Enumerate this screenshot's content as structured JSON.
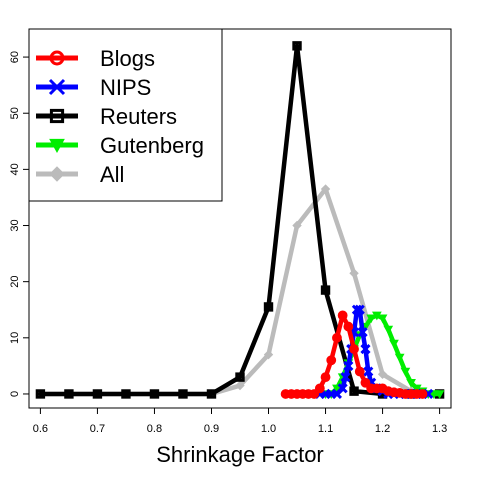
{
  "chart_data": {
    "type": "line",
    "title": "",
    "xlabel": "Shrinkage Factor",
    "ylabel": "",
    "xlim": [
      0.58,
      1.32
    ],
    "ylim": [
      -2.5,
      65
    ],
    "x_ticks": [
      "0.6",
      "0.7",
      "0.8",
      "0.9",
      "1.0",
      "1.1",
      "1.2",
      "1.3"
    ],
    "y_ticks": [
      "0",
      "10",
      "20",
      "30",
      "40",
      "50",
      "60"
    ],
    "legend_position": "top-left",
    "grid": false,
    "series": [
      {
        "name": "Blogs",
        "color": "#ff0000",
        "marker": "circle",
        "points": [
          [
            1.03,
            0
          ],
          [
            1.04,
            0
          ],
          [
            1.05,
            0
          ],
          [
            1.06,
            0
          ],
          [
            1.07,
            0
          ],
          [
            1.08,
            0
          ],
          [
            1.09,
            1
          ],
          [
            1.1,
            3
          ],
          [
            1.11,
            6
          ],
          [
            1.12,
            10
          ],
          [
            1.13,
            14
          ],
          [
            1.14,
            12
          ],
          [
            1.15,
            8
          ],
          [
            1.16,
            4
          ],
          [
            1.17,
            2
          ],
          [
            1.18,
            1
          ],
          [
            1.19,
            1
          ],
          [
            1.2,
            1
          ],
          [
            1.21,
            0.5
          ],
          [
            1.22,
            0.3
          ],
          [
            1.23,
            0.2
          ],
          [
            1.24,
            0
          ],
          [
            1.25,
            0
          ],
          [
            1.26,
            0
          ],
          [
            1.27,
            0
          ]
        ]
      },
      {
        "name": "NIPS",
        "color": "#0000ff",
        "marker": "x",
        "points": [
          [
            1.09,
            0
          ],
          [
            1.1,
            0
          ],
          [
            1.11,
            0
          ],
          [
            1.12,
            0
          ],
          [
            1.13,
            1
          ],
          [
            1.135,
            3
          ],
          [
            1.14,
            5
          ],
          [
            1.145,
            8
          ],
          [
            1.15,
            11
          ],
          [
            1.155,
            15
          ],
          [
            1.16,
            15
          ],
          [
            1.165,
            11
          ],
          [
            1.17,
            8
          ],
          [
            1.175,
            4
          ],
          [
            1.18,
            2
          ],
          [
            1.19,
            1
          ],
          [
            1.2,
            0.5
          ],
          [
            1.21,
            0
          ],
          [
            1.22,
            0
          ],
          [
            1.23,
            0
          ],
          [
            1.24,
            0
          ],
          [
            1.25,
            0
          ],
          [
            1.26,
            0
          ],
          [
            1.27,
            0
          ],
          [
            1.28,
            0
          ]
        ]
      },
      {
        "name": "Reuters",
        "color": "#000000",
        "marker": "square",
        "points": [
          [
            0.6,
            0
          ],
          [
            0.65,
            0
          ],
          [
            0.7,
            0
          ],
          [
            0.75,
            0
          ],
          [
            0.8,
            0
          ],
          [
            0.85,
            0
          ],
          [
            0.9,
            0
          ],
          [
            0.95,
            3
          ],
          [
            1.0,
            15.5
          ],
          [
            1.05,
            62
          ],
          [
            1.1,
            18.5
          ],
          [
            1.15,
            0.5
          ],
          [
            1.2,
            0
          ],
          [
            1.25,
            0
          ],
          [
            1.3,
            0
          ]
        ]
      },
      {
        "name": "Gutenberg",
        "color": "#00ee00",
        "marker": "triangle-down",
        "points": [
          [
            1.1,
            0
          ],
          [
            1.11,
            0
          ],
          [
            1.12,
            1
          ],
          [
            1.13,
            3
          ],
          [
            1.14,
            5.5
          ],
          [
            1.15,
            8
          ],
          [
            1.16,
            10.5
          ],
          [
            1.17,
            12
          ],
          [
            1.18,
            13.5
          ],
          [
            1.19,
            14
          ],
          [
            1.2,
            13.5
          ],
          [
            1.21,
            11.5
          ],
          [
            1.22,
            9
          ],
          [
            1.23,
            6.5
          ],
          [
            1.24,
            4
          ],
          [
            1.25,
            2
          ],
          [
            1.26,
            1
          ],
          [
            1.27,
            0.5
          ],
          [
            1.28,
            0
          ],
          [
            1.29,
            0
          ],
          [
            1.3,
            0
          ]
        ]
      },
      {
        "name": "All",
        "color": "#bbbbbb",
        "marker": "diamond",
        "points": [
          [
            0.6,
            0
          ],
          [
            0.65,
            0
          ],
          [
            0.7,
            0
          ],
          [
            0.75,
            0
          ],
          [
            0.8,
            0
          ],
          [
            0.85,
            0
          ],
          [
            0.9,
            0
          ],
          [
            0.95,
            1.5
          ],
          [
            1.0,
            7
          ],
          [
            1.05,
            30
          ],
          [
            1.1,
            36.5
          ],
          [
            1.15,
            21.5
          ],
          [
            1.2,
            3.5
          ],
          [
            1.25,
            0.5
          ],
          [
            1.3,
            0
          ]
        ]
      }
    ]
  }
}
